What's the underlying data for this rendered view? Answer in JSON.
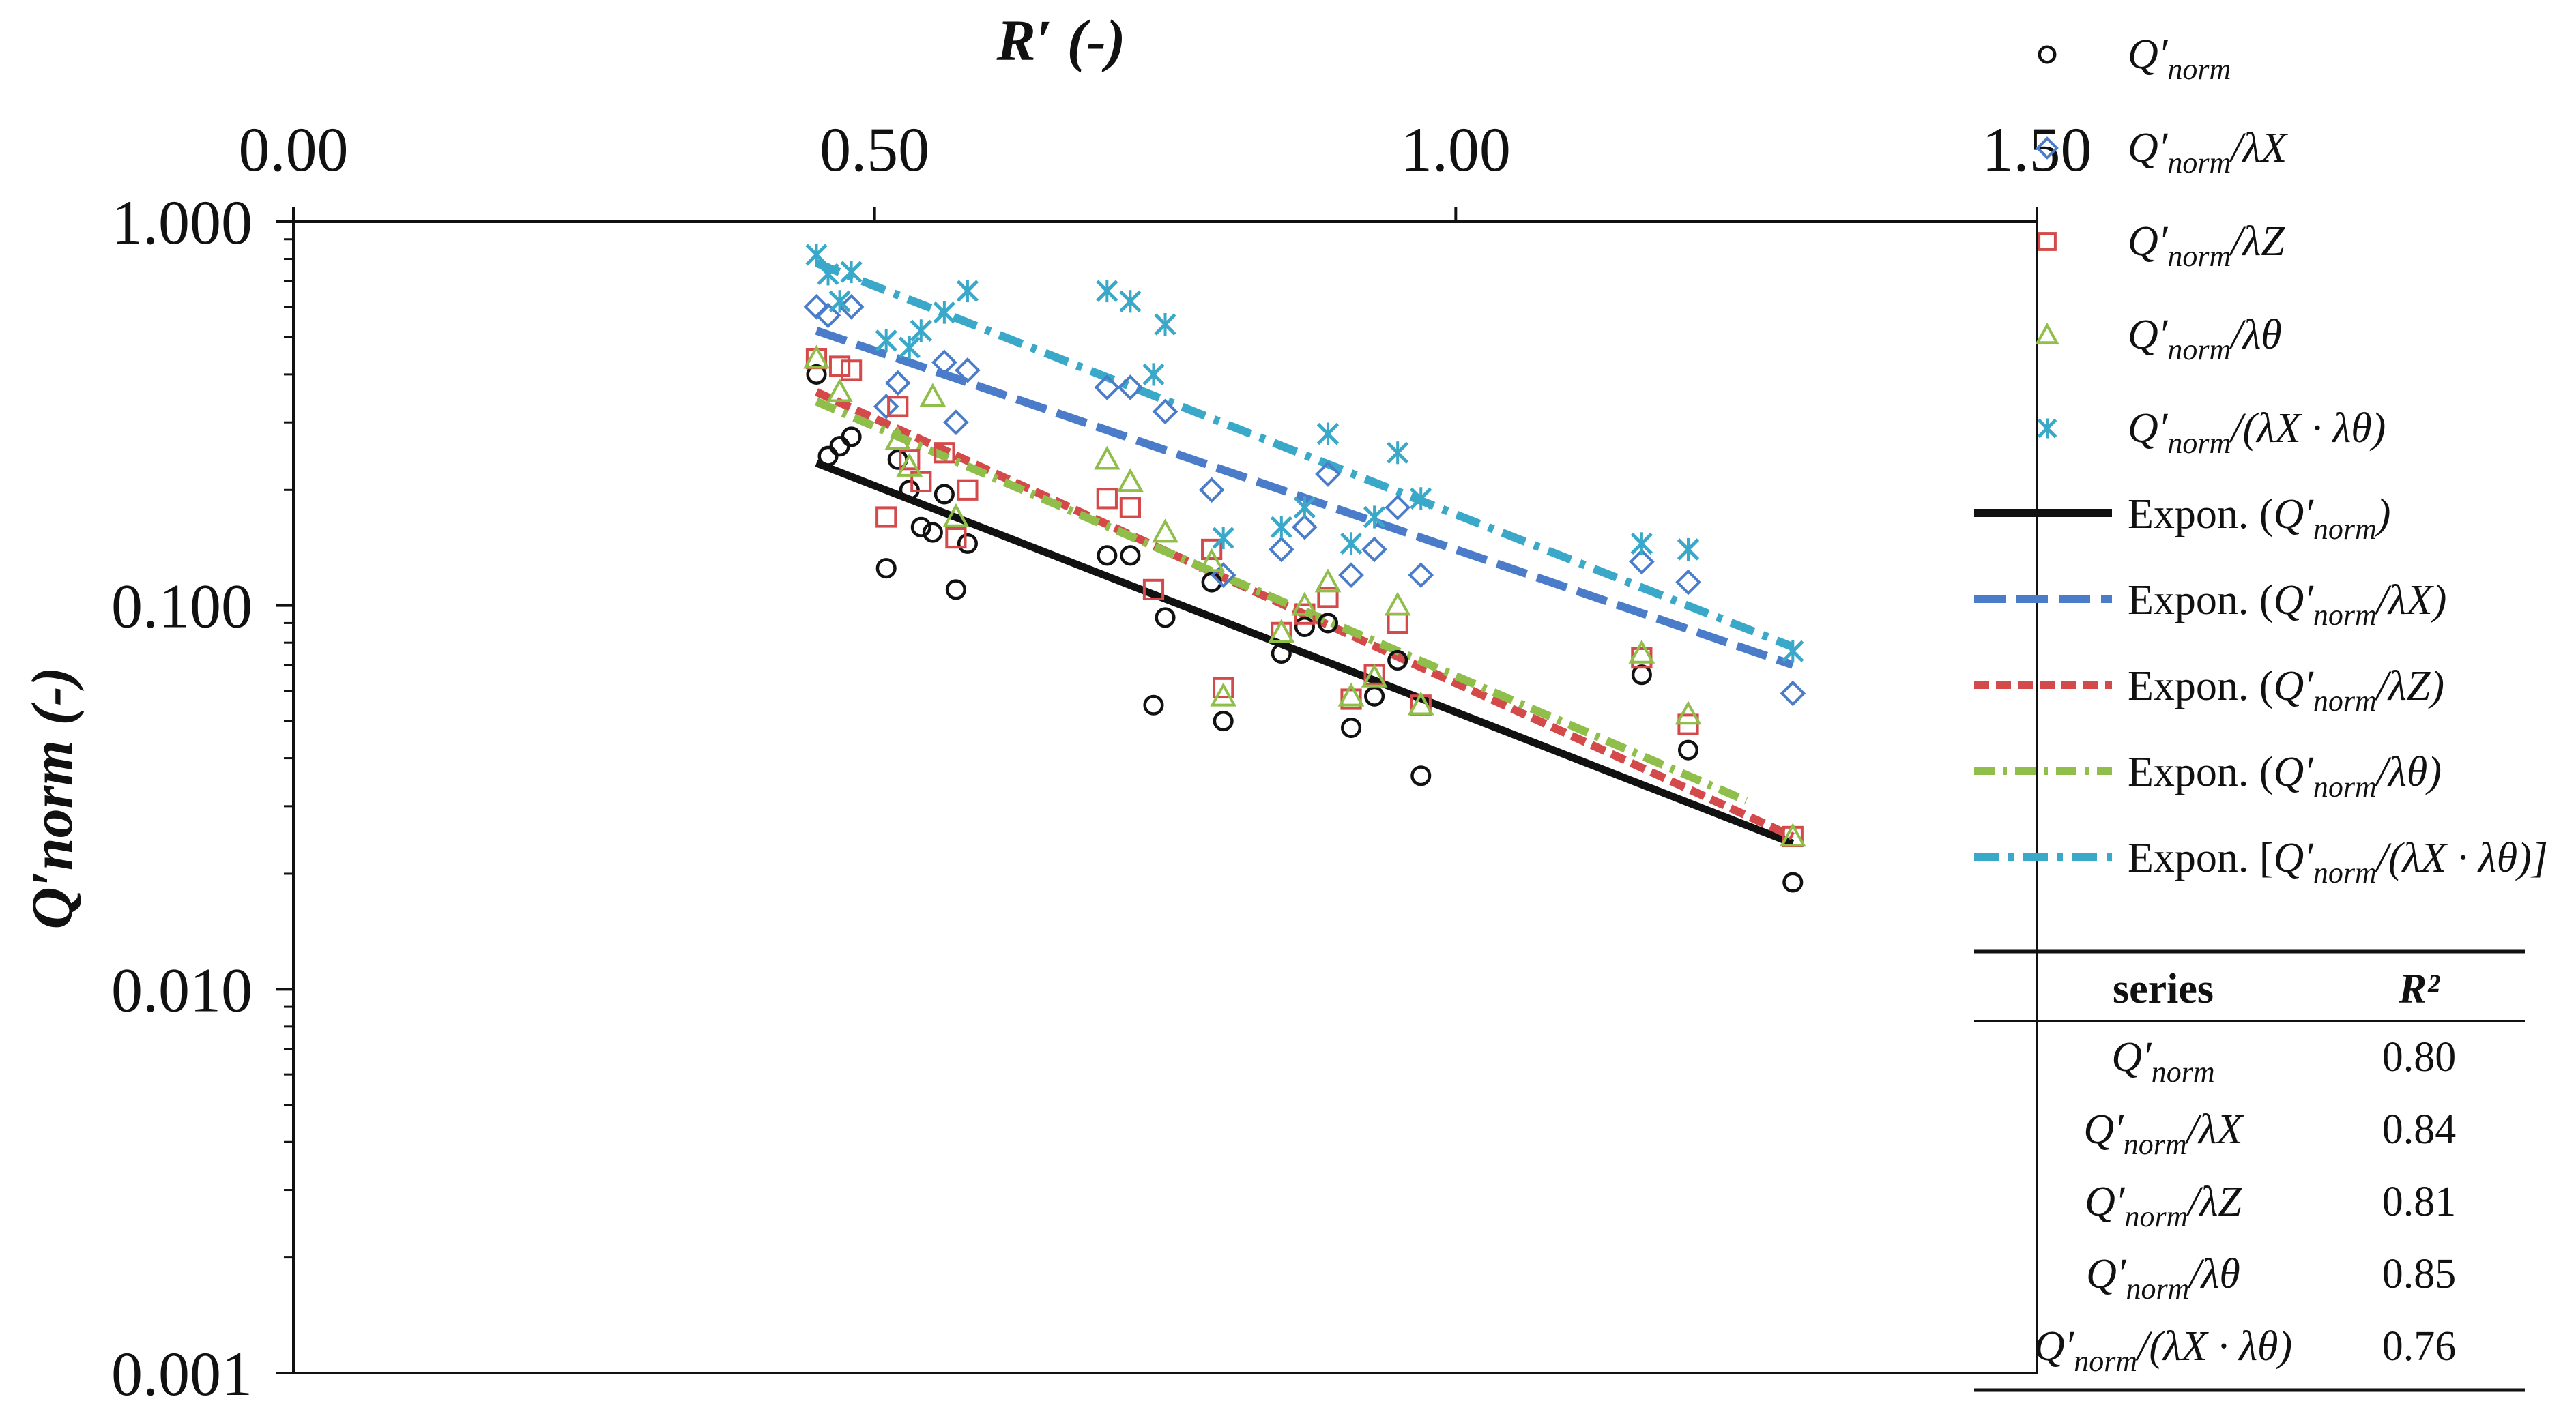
{
  "chart_data": {
    "type": "scatter",
    "title": "",
    "xlabel": "R′ (-)",
    "ylabel": "Q′norm (-)",
    "x_axis_position": "top",
    "xlim": [
      0,
      1.5
    ],
    "ylim": [
      0.001,
      1.0
    ],
    "yscale": "log",
    "x_ticks": [
      "0.00",
      "0.50",
      "1.00",
      "1.50"
    ],
    "y_ticks": [
      "1.000",
      "0.100",
      "0.010",
      "0.001"
    ],
    "grid": false,
    "legend_position": "right",
    "series": [
      {
        "name": "Q′norm",
        "label_main": "Q′",
        "label_sub": "norm",
        "label_tail": "",
        "marker": "circle",
        "color": "#111111",
        "points": [
          [
            0.45,
            0.4
          ],
          [
            0.46,
            0.245
          ],
          [
            0.47,
            0.26
          ],
          [
            0.48,
            0.275
          ],
          [
            0.51,
            0.125
          ],
          [
            0.52,
            0.24
          ],
          [
            0.53,
            0.2
          ],
          [
            0.54,
            0.16
          ],
          [
            0.55,
            0.155
          ],
          [
            0.56,
            0.195
          ],
          [
            0.57,
            0.11
          ],
          [
            0.58,
            0.145
          ],
          [
            0.7,
            0.135
          ],
          [
            0.72,
            0.135
          ],
          [
            0.74,
            0.055
          ],
          [
            0.75,
            0.093
          ],
          [
            0.8,
            0.05
          ],
          [
            0.79,
            0.115
          ],
          [
            0.85,
            0.075
          ],
          [
            0.87,
            0.088
          ],
          [
            0.89,
            0.09
          ],
          [
            0.91,
            0.048
          ],
          [
            0.93,
            0.058
          ],
          [
            0.95,
            0.072
          ],
          [
            0.97,
            0.036
          ],
          [
            1.16,
            0.066
          ],
          [
            1.2,
            0.042
          ],
          [
            1.29,
            0.019
          ]
        ]
      },
      {
        "name": "Q′norm/λX",
        "label_main": "Q′",
        "label_sub": "norm",
        "label_tail": "/λX",
        "marker": "diamond",
        "color": "#4a7cc9",
        "points": [
          [
            0.45,
            0.6
          ],
          [
            0.46,
            0.57
          ],
          [
            0.48,
            0.6
          ],
          [
            0.51,
            0.33
          ],
          [
            0.52,
            0.38
          ],
          [
            0.56,
            0.43
          ],
          [
            0.57,
            0.3
          ],
          [
            0.58,
            0.41
          ],
          [
            0.7,
            0.37
          ],
          [
            0.72,
            0.37
          ],
          [
            0.75,
            0.32
          ],
          [
            0.79,
            0.2
          ],
          [
            0.8,
            0.12
          ],
          [
            0.85,
            0.14
          ],
          [
            0.87,
            0.16
          ],
          [
            0.89,
            0.22
          ],
          [
            0.91,
            0.12
          ],
          [
            0.93,
            0.14
          ],
          [
            0.95,
            0.18
          ],
          [
            0.97,
            0.12
          ],
          [
            1.16,
            0.13
          ],
          [
            1.2,
            0.115
          ],
          [
            1.29,
            0.059
          ]
        ]
      },
      {
        "name": "Q′norm/λZ",
        "label_main": "Q′",
        "label_sub": "norm",
        "label_tail": "/λZ",
        "marker": "square",
        "color": "#d44a4a",
        "points": [
          [
            0.45,
            0.44
          ],
          [
            0.47,
            0.42
          ],
          [
            0.48,
            0.41
          ],
          [
            0.51,
            0.17
          ],
          [
            0.52,
            0.33
          ],
          [
            0.53,
            0.24
          ],
          [
            0.54,
            0.21
          ],
          [
            0.56,
            0.25
          ],
          [
            0.57,
            0.15
          ],
          [
            0.58,
            0.2
          ],
          [
            0.7,
            0.19
          ],
          [
            0.72,
            0.18
          ],
          [
            0.74,
            0.11
          ],
          [
            0.79,
            0.14
          ],
          [
            0.8,
            0.061
          ],
          [
            0.85,
            0.085
          ],
          [
            0.87,
            0.095
          ],
          [
            0.89,
            0.105
          ],
          [
            0.91,
            0.057
          ],
          [
            0.93,
            0.066
          ],
          [
            0.95,
            0.09
          ],
          [
            0.97,
            0.055
          ],
          [
            1.16,
            0.073
          ],
          [
            1.2,
            0.049
          ],
          [
            1.29,
            0.025
          ]
        ]
      },
      {
        "name": "Q′norm/λθ",
        "label_main": "Q′",
        "label_sub": "norm",
        "label_tail": "/λθ",
        "marker": "triangle",
        "color": "#8fbf4a",
        "points": [
          [
            0.45,
            0.44
          ],
          [
            0.47,
            0.36
          ],
          [
            0.52,
            0.27
          ],
          [
            0.53,
            0.23
          ],
          [
            0.55,
            0.35
          ],
          [
            0.57,
            0.17
          ],
          [
            0.7,
            0.24
          ],
          [
            0.72,
            0.21
          ],
          [
            0.75,
            0.155
          ],
          [
            0.79,
            0.13
          ],
          [
            0.8,
            0.058
          ],
          [
            0.85,
            0.085
          ],
          [
            0.87,
            0.1
          ],
          [
            0.89,
            0.115
          ],
          [
            0.91,
            0.058
          ],
          [
            0.93,
            0.065
          ],
          [
            0.95,
            0.1
          ],
          [
            0.97,
            0.055
          ],
          [
            1.16,
            0.075
          ],
          [
            1.2,
            0.052
          ],
          [
            1.29,
            0.025
          ]
        ]
      },
      {
        "name": "Q′norm/(λX · λθ)",
        "label_main": "Q′",
        "label_sub": "norm",
        "label_tail": "/(λX · λθ)",
        "marker": "asterisk",
        "color": "#3aa8c8",
        "points": [
          [
            0.45,
            0.82
          ],
          [
            0.46,
            0.73
          ],
          [
            0.47,
            0.62
          ],
          [
            0.48,
            0.74
          ],
          [
            0.51,
            0.49
          ],
          [
            0.53,
            0.47
          ],
          [
            0.54,
            0.52
          ],
          [
            0.56,
            0.58
          ],
          [
            0.58,
            0.66
          ],
          [
            0.7,
            0.66
          ],
          [
            0.72,
            0.62
          ],
          [
            0.75,
            0.54
          ],
          [
            0.74,
            0.4
          ],
          [
            0.8,
            0.15
          ],
          [
            0.85,
            0.16
          ],
          [
            0.87,
            0.18
          ],
          [
            0.89,
            0.28
          ],
          [
            0.91,
            0.145
          ],
          [
            0.93,
            0.17
          ],
          [
            0.95,
            0.25
          ],
          [
            0.97,
            0.19
          ],
          [
            1.16,
            0.145
          ],
          [
            1.2,
            0.14
          ],
          [
            1.29,
            0.076
          ]
        ]
      }
    ],
    "fits": [
      {
        "name": "Expon. (Q′norm)",
        "label_pre": "Expon. (",
        "label_main": "Q′",
        "label_sub": "norm",
        "label_tail": ")",
        "color": "#111111",
        "style": "solid",
        "x_range": [
          0.45,
          1.29
        ],
        "y_start": 0.235,
        "y_end": 0.024
      },
      {
        "name": "Expon. (Q′norm/λX)",
        "label_pre": "Expon. (",
        "label_main": "Q′",
        "label_sub": "norm",
        "label_tail": "/λX)",
        "color": "#4a7cc9",
        "style": "long-dash",
        "x_range": [
          0.45,
          1.29
        ],
        "y_start": 0.52,
        "y_end": 0.07
      },
      {
        "name": "Expon. (Q′norm/λZ)",
        "label_pre": "Expon. (",
        "label_main": "Q′",
        "label_sub": "norm",
        "label_tail": "/λZ)",
        "color": "#d44a4a",
        "style": "dash",
        "x_range": [
          0.45,
          1.29
        ],
        "y_start": 0.36,
        "y_end": 0.025
      },
      {
        "name": "Expon. (Q′norm/λθ)",
        "label_pre": "Expon. (",
        "label_main": "Q′",
        "label_sub": "norm",
        "label_tail": "/λθ)",
        "color": "#8fbf4a",
        "style": "dash-dot",
        "x_range": [
          0.45,
          1.25
        ],
        "y_start": 0.34,
        "y_end": 0.031
      },
      {
        "name": "Expon. [Q′norm/(λX · λθ)]",
        "label_pre": "Expon. [",
        "label_main": "Q′",
        "label_sub": "norm",
        "label_tail": "/(λX · λθ)]",
        "color": "#3aa8c8",
        "style": "long-dash-dot",
        "x_range": [
          0.45,
          1.29
        ],
        "y_start": 0.78,
        "y_end": 0.078
      }
    ],
    "r2_table": {
      "header_series": "series",
      "header_r2": "R²",
      "rows": [
        {
          "main": "Q′",
          "sub": "norm",
          "tail": "",
          "r2": "0.80"
        },
        {
          "main": "Q′",
          "sub": "norm",
          "tail": "/λX",
          "r2": "0.84"
        },
        {
          "main": "Q′",
          "sub": "norm",
          "tail": "/λZ",
          "r2": "0.81"
        },
        {
          "main": "Q′",
          "sub": "norm",
          "tail": "/λθ",
          "r2": "0.85"
        },
        {
          "main": "Q′",
          "sub": "norm",
          "tail": "/(λX · λθ)",
          "r2": "0.76"
        }
      ]
    }
  }
}
